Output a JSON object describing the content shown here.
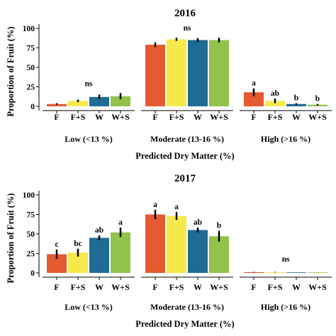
{
  "chart_data": [
    {
      "type": "bar",
      "title": "2016",
      "ylabel": "Proportion of Fruit (%)",
      "xlabel": "Predicted Dry Matter (%)",
      "ylim": [
        0,
        100
      ],
      "yticks": [
        "0",
        "25",
        "50",
        "75",
        "100"
      ],
      "treatments": [
        "F",
        "F+S",
        "W",
        "W+S"
      ],
      "colors": [
        "#E55A31",
        "#F7E84C",
        "#1F6B94",
        "#92C24A"
      ],
      "groups": [
        {
          "label": "Low (<13 %)",
          "values": [
            3,
            7,
            12,
            13
          ],
          "errors": [
            1,
            1.5,
            3,
            4
          ],
          "letters": [
            "",
            "",
            "",
            ""
          ],
          "note": "ns"
        },
        {
          "label": "Moderate (13-16 %)",
          "values": [
            79,
            86,
            85,
            85
          ],
          "errors": [
            3,
            2,
            2.5,
            3
          ],
          "letters": [
            "",
            "",
            "",
            ""
          ],
          "note": "ns"
        },
        {
          "label": "High (>16 %)",
          "values": [
            18,
            7,
            3,
            2
          ],
          "errors": [
            5,
            3,
            1,
            1
          ],
          "letters": [
            "a",
            "ab",
            "b",
            "b"
          ],
          "note": ""
        }
      ]
    },
    {
      "type": "bar",
      "title": "2017",
      "ylabel": "Proportion of Fruit (%)",
      "xlabel": "Predicted Dry Matter (%)",
      "ylim": [
        0,
        100
      ],
      "yticks": [
        "0",
        "25",
        "50",
        "75",
        "100"
      ],
      "treatments": [
        "F",
        "F+S",
        "W",
        "W+S"
      ],
      "colors": [
        "#E55A31",
        "#F7E84C",
        "#1F6B94",
        "#92C24A"
      ],
      "groups": [
        {
          "label": "Low (<13 %)",
          "values": [
            24,
            26,
            45,
            52
          ],
          "errors": [
            6,
            5,
            3,
            6
          ],
          "letters": [
            "c",
            "bc",
            "ab",
            "a"
          ],
          "note": ""
        },
        {
          "label": "Moderate (13-16 %)",
          "values": [
            75,
            73,
            55,
            47
          ],
          "errors": [
            6,
            5,
            3,
            7
          ],
          "letters": [
            "a",
            "a",
            "ab",
            "b"
          ],
          "note": ""
        },
        {
          "label": "High (>16 %)",
          "values": [
            1,
            1,
            0,
            0
          ],
          "errors": [
            0.3,
            0.3,
            0,
            0
          ],
          "letters": [
            "",
            "",
            "",
            ""
          ],
          "note": "ns"
        }
      ]
    }
  ]
}
